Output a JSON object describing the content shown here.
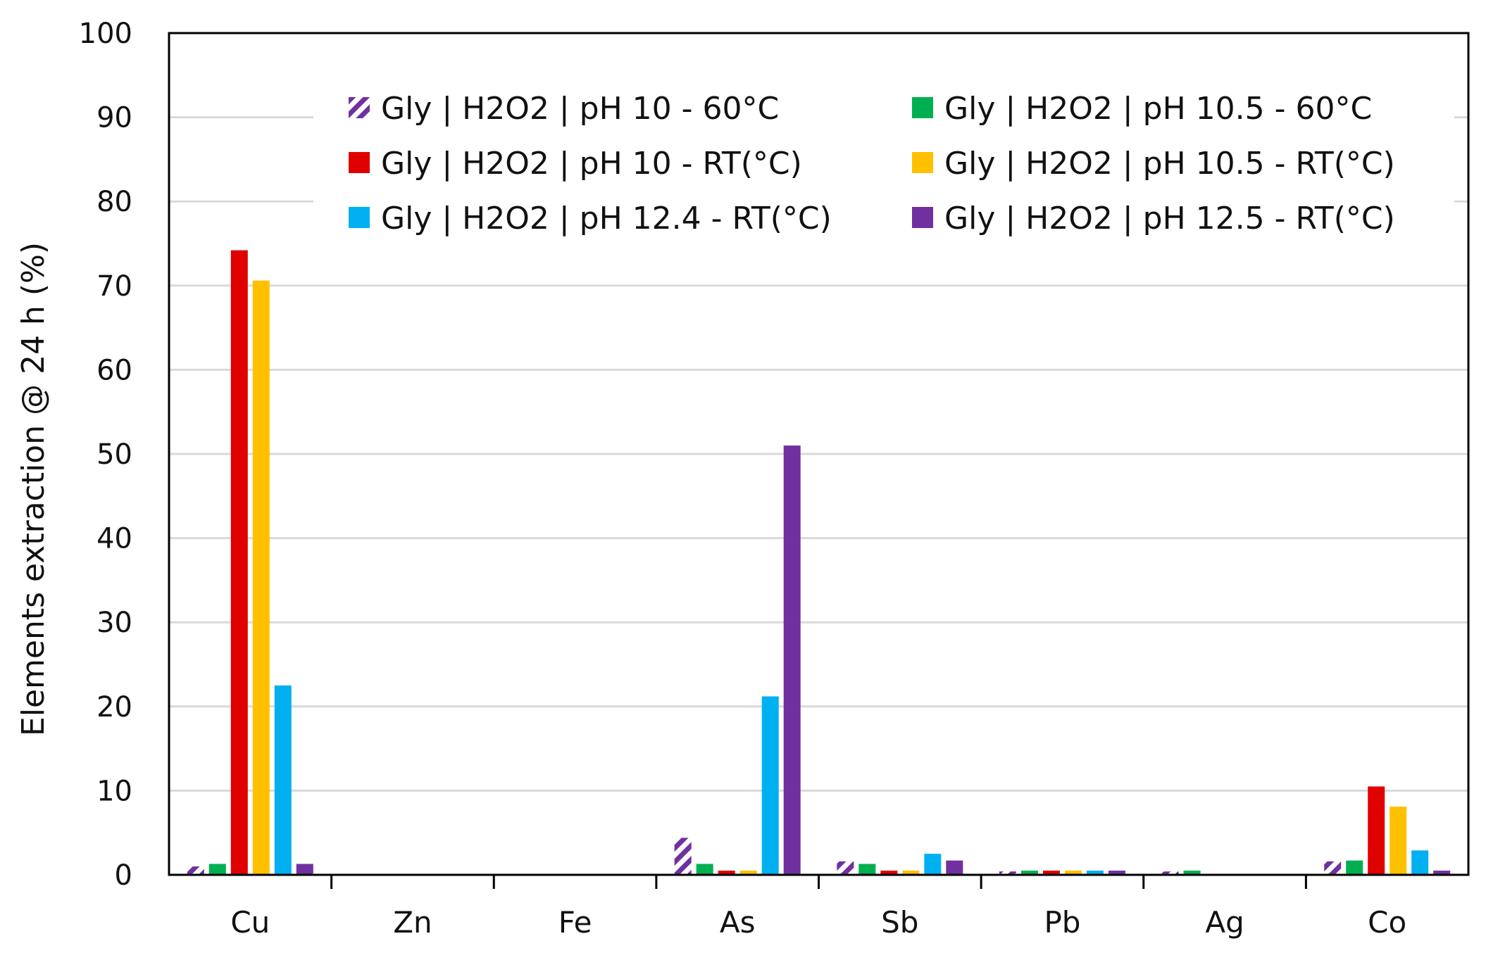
{
  "chart_data": {
    "type": "bar",
    "title": "",
    "xlabel": "",
    "ylabel": "Elements extraction @ 24 h (%)",
    "ylim": [
      0,
      100
    ],
    "yticks": [
      0,
      10,
      20,
      30,
      40,
      50,
      60,
      70,
      80,
      90,
      100
    ],
    "grid": true,
    "legend_position": "top",
    "categories": [
      "Cu",
      "Zn",
      "Fe",
      "As",
      "Sb",
      "Pb",
      "Ag",
      "Co"
    ],
    "series": [
      {
        "name": "Gly | H2O2 | pH 10 - 60°C",
        "color": "#7030A0",
        "pattern": "hatched",
        "values": [
          1.0,
          0,
          0,
          4.4,
          1.6,
          0.4,
          0.4,
          1.6
        ]
      },
      {
        "name": "Gly | H2O2 | pH 10.5 - 60°C",
        "color": "#00B050",
        "pattern": "solid",
        "values": [
          1.3,
          0,
          0,
          1.3,
          1.3,
          0.5,
          0.5,
          1.7
        ]
      },
      {
        "name": "Gly | H2O2 | pH 10 - RT(°C)",
        "color": "#E00000",
        "pattern": "solid",
        "values": [
          74.2,
          0,
          0,
          0.5,
          0.5,
          0.5,
          0,
          10.5
        ]
      },
      {
        "name": "Gly | H2O2 | pH 10.5 - RT(°C)",
        "color": "#FFC000",
        "pattern": "solid",
        "values": [
          70.6,
          0,
          0,
          0.5,
          0.5,
          0.5,
          0,
          8.1
        ]
      },
      {
        "name": "Gly | H2O2 | pH 12.4 - RT(°C)",
        "color": "#00B0F0",
        "pattern": "solid",
        "values": [
          22.5,
          0,
          0,
          21.2,
          2.5,
          0.5,
          0,
          2.9
        ]
      },
      {
        "name": "Gly | H2O2 | pH 12.5 - RT(°C)",
        "color": "#7030A0",
        "pattern": "solid",
        "values": [
          1.3,
          0,
          0,
          51.0,
          1.7,
          0.5,
          0,
          0.5
        ]
      }
    ]
  }
}
